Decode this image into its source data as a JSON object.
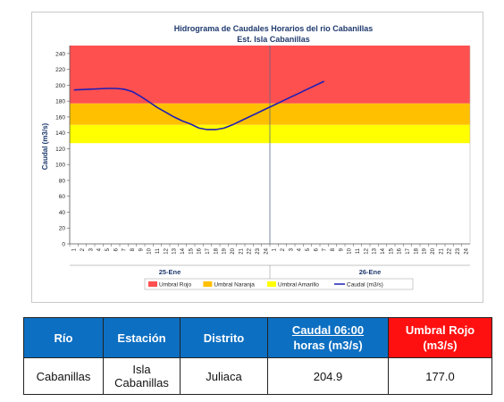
{
  "chart_data": {
    "type": "line",
    "title": "Hidrograma de Caudales Horarios del rio Cabanillas",
    "subtitle": "Est. Isla Cabanillas",
    "ylabel": "Caudal  (m3/s)",
    "ylim": [
      0,
      250
    ],
    "yticks": [
      0,
      20,
      40,
      60,
      80,
      100,
      120,
      140,
      160,
      180,
      200,
      220,
      240
    ],
    "xtick_labels": [
      "1",
      "2",
      "3",
      "4",
      "5",
      "6",
      "7",
      "8",
      "9",
      "10",
      "11",
      "12",
      "13",
      "14",
      "15",
      "16",
      "17",
      "18",
      "19",
      "20",
      "21",
      "22",
      "23",
      "24",
      "1",
      "2",
      "3",
      "4",
      "5",
      "6",
      "7",
      "8",
      "9",
      "10",
      "11",
      "12",
      "13",
      "14",
      "15",
      "16",
      "17",
      "18",
      "19",
      "20",
      "21",
      "22",
      "23",
      "24"
    ],
    "day_labels": [
      "25-Ene",
      "26-Ene"
    ],
    "thresholds": [
      {
        "name": "Umbral Rojo",
        "from": 177,
        "to": 250,
        "color": "#ff5050"
      },
      {
        "name": "Umbral Naranja",
        "from": 150,
        "to": 177,
        "color": "#ffc000"
      },
      {
        "name": "Umbral Amarillo",
        "from": 127,
        "to": 150,
        "color": "#ffff00"
      }
    ],
    "series": [
      {
        "name": "Caudal (m3/s)",
        "color": "#1f1fb4",
        "x": [
          1,
          3,
          5,
          6,
          7,
          8,
          9,
          10,
          11,
          12,
          13,
          14,
          15,
          16,
          17,
          18,
          19,
          20,
          21,
          22,
          23,
          24,
          25,
          26,
          27,
          28,
          29,
          30,
          31
        ],
        "values": [
          194,
          195,
          196,
          196,
          195,
          192,
          186,
          179,
          172,
          166,
          160,
          155,
          151,
          146,
          144,
          144,
          146,
          150,
          155,
          160,
          165,
          170,
          175,
          180,
          185,
          190,
          195,
          200,
          205
        ]
      }
    ],
    "legend_position": "bottom"
  },
  "table": {
    "headers": {
      "rio": "Río",
      "estacion": "Estación",
      "distrito": "Distrito",
      "caudal_line1": "Caudal  06:00",
      "caudal_line2": "horas (m3/s)",
      "umbral_line1": "Umbral Rojo",
      "umbral_line2": "(m3/s)"
    },
    "row": {
      "rio": "Cabanillas",
      "estacion": "Isla Cabanillas",
      "distrito": "Juliaca",
      "caudal": "204.9",
      "umbral": "177.0"
    }
  }
}
